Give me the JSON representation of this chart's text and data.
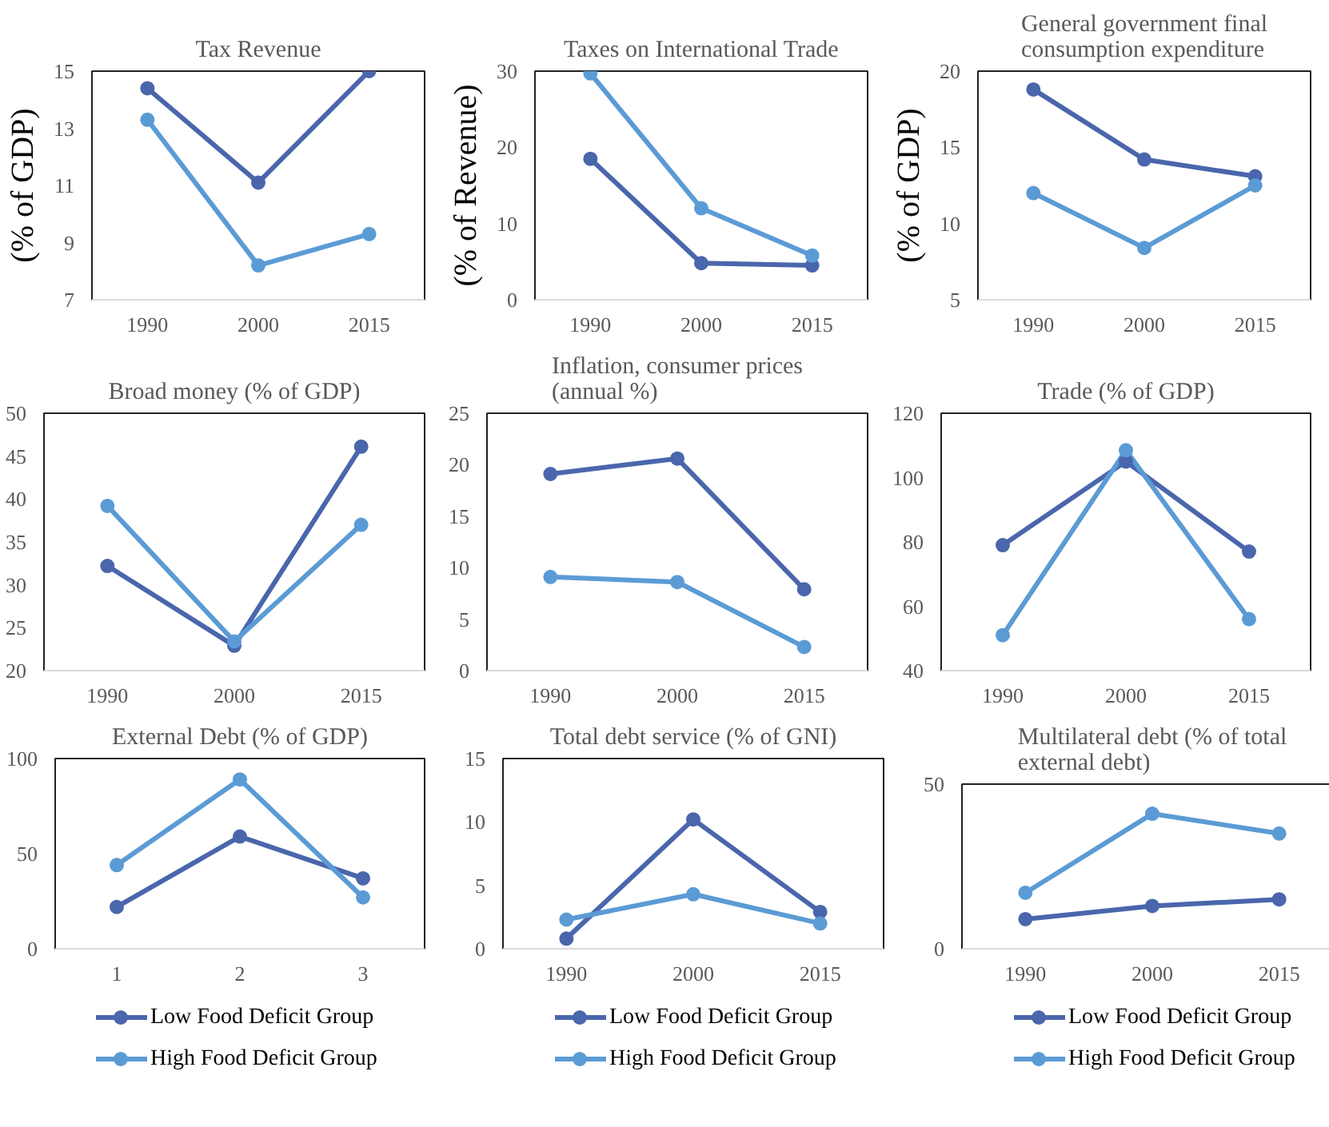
{
  "chart_data": [
    {
      "type": "line",
      "title": "Tax Revenue",
      "ylabel": "(% of GDP)",
      "categories": [
        "1990",
        "2000",
        "2015"
      ],
      "ylim": [
        7,
        15
      ],
      "yticks": [
        7,
        9,
        11,
        13,
        15
      ],
      "grid": false,
      "legend": false,
      "marker": "circle",
      "series": [
        {
          "color": "#4a66ac",
          "values": [
            14.4,
            11.1,
            15.0
          ]
        },
        {
          "color": "#5b9bd5",
          "values": [
            13.3,
            8.2,
            9.3
          ]
        }
      ]
    },
    {
      "type": "line",
      "title": "Taxes on International Trade",
      "ylabel": "(% of Revenue)",
      "categories": [
        "1990",
        "2000",
        "2015"
      ],
      "ylim": [
        0,
        30
      ],
      "yticks": [
        0,
        10,
        20,
        30
      ],
      "grid": false,
      "legend": false,
      "marker": "circle",
      "series": [
        {
          "color": "#4a66ac",
          "values": [
            18.5,
            4.8,
            4.5
          ]
        },
        {
          "color": "#5b9bd5",
          "values": [
            29.7,
            12.0,
            5.8
          ]
        }
      ]
    },
    {
      "type": "line",
      "title": "General government final consumption expenditure",
      "ylabel": "(% of GDP)",
      "categories": [
        "1990",
        "2000",
        "2015"
      ],
      "ylim": [
        5,
        20
      ],
      "yticks": [
        5,
        10,
        15,
        20
      ],
      "grid": false,
      "legend": false,
      "marker": "circle",
      "series": [
        {
          "color": "#4a66ac",
          "values": [
            18.8,
            14.2,
            13.1
          ]
        },
        {
          "color": "#5b9bd5",
          "values": [
            12.0,
            8.4,
            12.5
          ]
        }
      ]
    },
    {
      "type": "line",
      "title": "Broad money (% of GDP)",
      "categories": [
        "1990",
        "2000",
        "2015"
      ],
      "ylim": [
        20,
        50
      ],
      "yticks": [
        20,
        25,
        30,
        35,
        40,
        45,
        50
      ],
      "grid": false,
      "legend": false,
      "marker": "circle",
      "series": [
        {
          "color": "#4a66ac",
          "values": [
            32.2,
            22.9,
            46.1
          ]
        },
        {
          "color": "#5b9bd5",
          "values": [
            39.2,
            23.4,
            37.0
          ]
        }
      ]
    },
    {
      "type": "line",
      "title": "Inflation, consumer prices (annual %)",
      "categories": [
        "1990",
        "2000",
        "2015"
      ],
      "ylim": [
        0,
        25
      ],
      "yticks": [
        0,
        5,
        10,
        15,
        20,
        25
      ],
      "grid": false,
      "legend": false,
      "marker": "circle",
      "series": [
        {
          "color": "#4a66ac",
          "values": [
            19.1,
            20.6,
            7.9
          ]
        },
        {
          "color": "#5b9bd5",
          "values": [
            9.1,
            8.6,
            2.3
          ]
        }
      ]
    },
    {
      "type": "line",
      "title": "Trade (% of GDP)",
      "categories": [
        "1990",
        "2000",
        "2015"
      ],
      "ylim": [
        40,
        120
      ],
      "yticks": [
        40,
        60,
        80,
        100,
        120
      ],
      "grid": false,
      "legend": false,
      "marker": "circle",
      "series": [
        {
          "color": "#4a66ac",
          "values": [
            79,
            105,
            77
          ]
        },
        {
          "color": "#5b9bd5",
          "values": [
            51,
            108.5,
            56
          ]
        }
      ]
    },
    {
      "type": "line",
      "title": "External Debt (% of GDP)",
      "categories": [
        "1",
        "2",
        "3"
      ],
      "ylim": [
        0,
        100
      ],
      "yticks": [
        0,
        50,
        100
      ],
      "grid": false,
      "legend": "bottom",
      "marker": "circle",
      "series": [
        {
          "name": "Low Food Deficit Group",
          "color": "#4a66ac",
          "values": [
            22,
            59,
            37
          ]
        },
        {
          "name": "High Food Deficit Group",
          "color": "#5b9bd5",
          "values": [
            44,
            89,
            27
          ]
        }
      ]
    },
    {
      "type": "line",
      "title": "Total debt service (% of GNI)",
      "categories": [
        "1990",
        "2000",
        "2015"
      ],
      "ylim": [
        0,
        15
      ],
      "yticks": [
        0,
        5,
        10,
        15
      ],
      "grid": false,
      "legend": "bottom",
      "marker": "circle",
      "series": [
        {
          "name": "Low Food Deficit Group",
          "color": "#4a66ac",
          "values": [
            0.8,
            10.2,
            2.9
          ]
        },
        {
          "name": "High Food Deficit Group",
          "color": "#5b9bd5",
          "values": [
            2.3,
            4.3,
            2.0
          ]
        }
      ]
    },
    {
      "type": "line",
      "title": "Multilateral debt (% of total external debt)",
      "categories": [
        "1990",
        "2000",
        "2015"
      ],
      "ylim": [
        0,
        50
      ],
      "yticks": [
        0,
        50
      ],
      "grid": false,
      "legend": "bottom",
      "marker": "circle",
      "series": [
        {
          "name": "Low Food Deficit Group",
          "color": "#4a66ac",
          "values": [
            9,
            13,
            15
          ]
        },
        {
          "name": "High Food Deficit Group",
          "color": "#5b9bd5",
          "values": [
            17,
            41,
            35
          ]
        }
      ]
    }
  ]
}
